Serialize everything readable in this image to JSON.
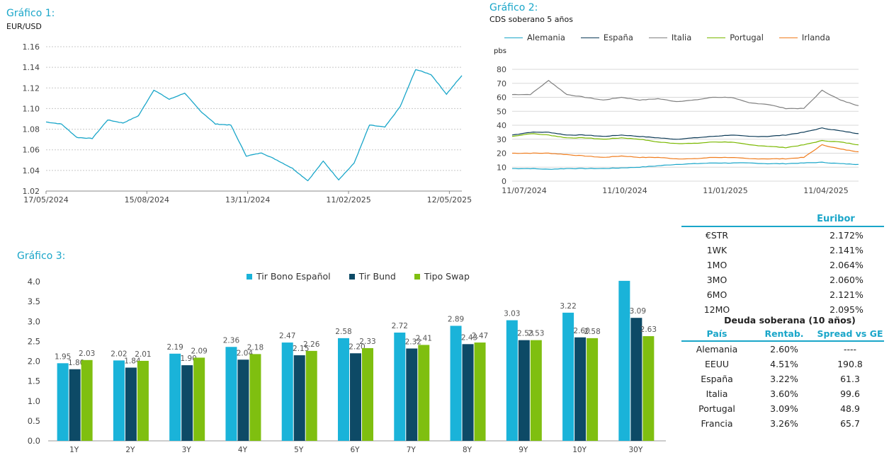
{
  "charts": {
    "c1": {
      "label": "Gráfico 1:",
      "subtitle": "EUR/USD"
    },
    "c2": {
      "label": "Gráfico 2:",
      "subtitle": "CDS soberano 5 años",
      "unit": "pbs"
    },
    "c3": {
      "label": "Gráfico 3:"
    }
  },
  "chart_data": [
    {
      "type": "line",
      "title": "EUR/USD",
      "x_ticks": [
        "17/05/2024",
        "15/08/2024",
        "13/11/2024",
        "11/02/2025",
        "12/05/2025"
      ],
      "ylim": [
        1.02,
        1.16
      ],
      "y_ticks": [
        "1.02",
        "1.04",
        "1.06",
        "1.08",
        "1.10",
        "1.12",
        "1.14",
        "1.16"
      ],
      "grid": true,
      "color": "#1aa6c9",
      "series": [
        {
          "x": [
            "2024-05-17",
            "2024-05-31",
            "2024-06-14",
            "2024-06-28",
            "2024-07-12",
            "2024-07-26",
            "2024-08-09",
            "2024-08-23",
            "2024-09-06",
            "2024-09-20",
            "2024-10-04",
            "2024-10-18",
            "2024-11-01",
            "2024-11-15",
            "2024-11-29",
            "2024-12-13",
            "2024-12-27",
            "2025-01-10",
            "2025-01-24",
            "2025-02-07",
            "2025-02-21",
            "2025-03-07",
            "2025-03-21",
            "2025-04-04",
            "2025-04-18",
            "2025-05-02",
            "2025-05-12",
            "2025-05-19"
          ],
          "values": [
            1.087,
            1.085,
            1.072,
            1.071,
            1.089,
            1.086,
            1.093,
            1.118,
            1.109,
            1.115,
            1.098,
            1.085,
            1.084,
            1.054,
            1.057,
            1.05,
            1.042,
            1.03,
            1.049,
            1.031,
            1.047,
            1.084,
            1.082,
            1.102,
            1.138,
            1.133,
            1.114,
            1.132
          ]
        }
      ]
    },
    {
      "type": "line",
      "title": "CDS soberano 5 años",
      "ylabel": "pbs",
      "x_ticks": [
        "11/07/2024",
        "11/10/2024",
        "11/01/2025",
        "11/04/2025"
      ],
      "ylim": [
        0,
        80
      ],
      "y_ticks": [
        "0",
        "10",
        "20",
        "30",
        "40",
        "50",
        "60",
        "70",
        "80"
      ],
      "grid": true,
      "legend": "top",
      "series": [
        {
          "name": "Alemania",
          "color": "#1aa6c9",
          "values": [
            9,
            9,
            8.5,
            9,
            9,
            9,
            9.5,
            10,
            11,
            12,
            12.5,
            13,
            13,
            13,
            12.5,
            12.5,
            13,
            13.5,
            12.5,
            12
          ]
        },
        {
          "name": "España",
          "color": "#0d3b57",
          "values": [
            33,
            35,
            35,
            33,
            33,
            32,
            33,
            32,
            31,
            30,
            31,
            32,
            33,
            32,
            32,
            33,
            35,
            38,
            36,
            34
          ]
        },
        {
          "name": "Italia",
          "color": "#808080",
          "values": [
            62,
            62,
            72,
            62,
            60,
            58,
            60,
            58,
            59,
            57,
            58,
            60,
            60,
            56,
            55,
            52,
            52,
            65,
            58,
            54
          ]
        },
        {
          "name": "Portugal",
          "color": "#7ab800",
          "values": [
            32,
            34,
            33,
            31,
            31,
            30,
            31,
            30,
            28,
            27,
            27,
            28,
            28,
            26,
            25,
            24,
            26,
            29,
            28,
            26
          ]
        },
        {
          "name": "Irlanda",
          "color": "#f07d1e",
          "values": [
            20,
            20,
            20,
            19,
            18,
            17,
            18,
            17,
            17,
            16,
            16,
            17,
            17,
            16,
            16,
            16,
            17,
            26,
            23,
            21
          ]
        }
      ]
    },
    {
      "type": "bar",
      "categories": [
        "1Y",
        "2Y",
        "3Y",
        "4Y",
        "5Y",
        "6Y",
        "7Y",
        "8Y",
        "9Y",
        "10Y",
        "30Y"
      ],
      "ylim": [
        0,
        4.0
      ],
      "y_ticks": [
        "0.0",
        "0.5",
        "1.0",
        "1.5",
        "2.0",
        "2.5",
        "3.0",
        "3.5",
        "4.0"
      ],
      "legend": "top",
      "series": [
        {
          "name": "Tir Bono Español",
          "color": "#1ab3d9",
          "values": [
            1.95,
            2.02,
            2.19,
            2.36,
            2.47,
            2.58,
            2.72,
            2.89,
            3.03,
            3.22,
            4.02
          ],
          "labels": [
            "1.95",
            "2.02",
            "2.19",
            "2.36",
            "2.47",
            "2.58",
            "2.72",
            "2.89",
            "3.03",
            "3.22",
            ""
          ]
        },
        {
          "name": "Tir Bund",
          "color": "#0d4a66",
          "values": [
            1.8,
            1.84,
            1.9,
            2.04,
            2.15,
            2.2,
            2.32,
            2.43,
            2.53,
            2.6,
            3.09
          ],
          "labels": [
            "1.80",
            "1.84",
            "1.90",
            "2.04",
            "2.15",
            "2.20",
            "2.32",
            "2.43",
            "2.53",
            "2.60",
            "3.09"
          ]
        },
        {
          "name": "Tipo Swap",
          "color": "#7fbf10",
          "values": [
            2.03,
            2.01,
            2.09,
            2.18,
            2.26,
            2.33,
            2.41,
            2.47,
            2.53,
            2.58,
            2.63
          ],
          "labels": [
            "2.03",
            "2.01",
            "2.09",
            "2.18",
            "2.26",
            "2.33",
            "2.41",
            "2.47",
            "2.53",
            "2.58",
            "2.63"
          ]
        }
      ]
    },
    {
      "type": "table",
      "title": "Euribor",
      "rows": [
        {
          "label": "€STR",
          "value": "2.172%"
        },
        {
          "label": "1WK",
          "value": "2.141%"
        },
        {
          "label": "1MO",
          "value": "2.064%"
        },
        {
          "label": "3MO",
          "value": "2.060%"
        },
        {
          "label": "6MO",
          "value": "2.121%"
        },
        {
          "label": "12MO",
          "value": "2.095%"
        }
      ]
    },
    {
      "type": "table",
      "title": "Deuda soberana (10 años)",
      "columns": [
        "País",
        "Rentab.",
        "Spread vs GE"
      ],
      "rows": [
        {
          "pais": "Alemania",
          "rent": "2.60%",
          "spread": "----"
        },
        {
          "pais": "EEUU",
          "rent": "4.51%",
          "spread": "190.8"
        },
        {
          "pais": "España",
          "rent": "3.22%",
          "spread": "61.3"
        },
        {
          "pais": "Italia",
          "rent": "3.60%",
          "spread": "99.6"
        },
        {
          "pais": "Portugal",
          "rent": "3.09%",
          "spread": "48.9"
        },
        {
          "pais": "Francia",
          "rent": "3.26%",
          "spread": "65.7"
        }
      ]
    }
  ]
}
